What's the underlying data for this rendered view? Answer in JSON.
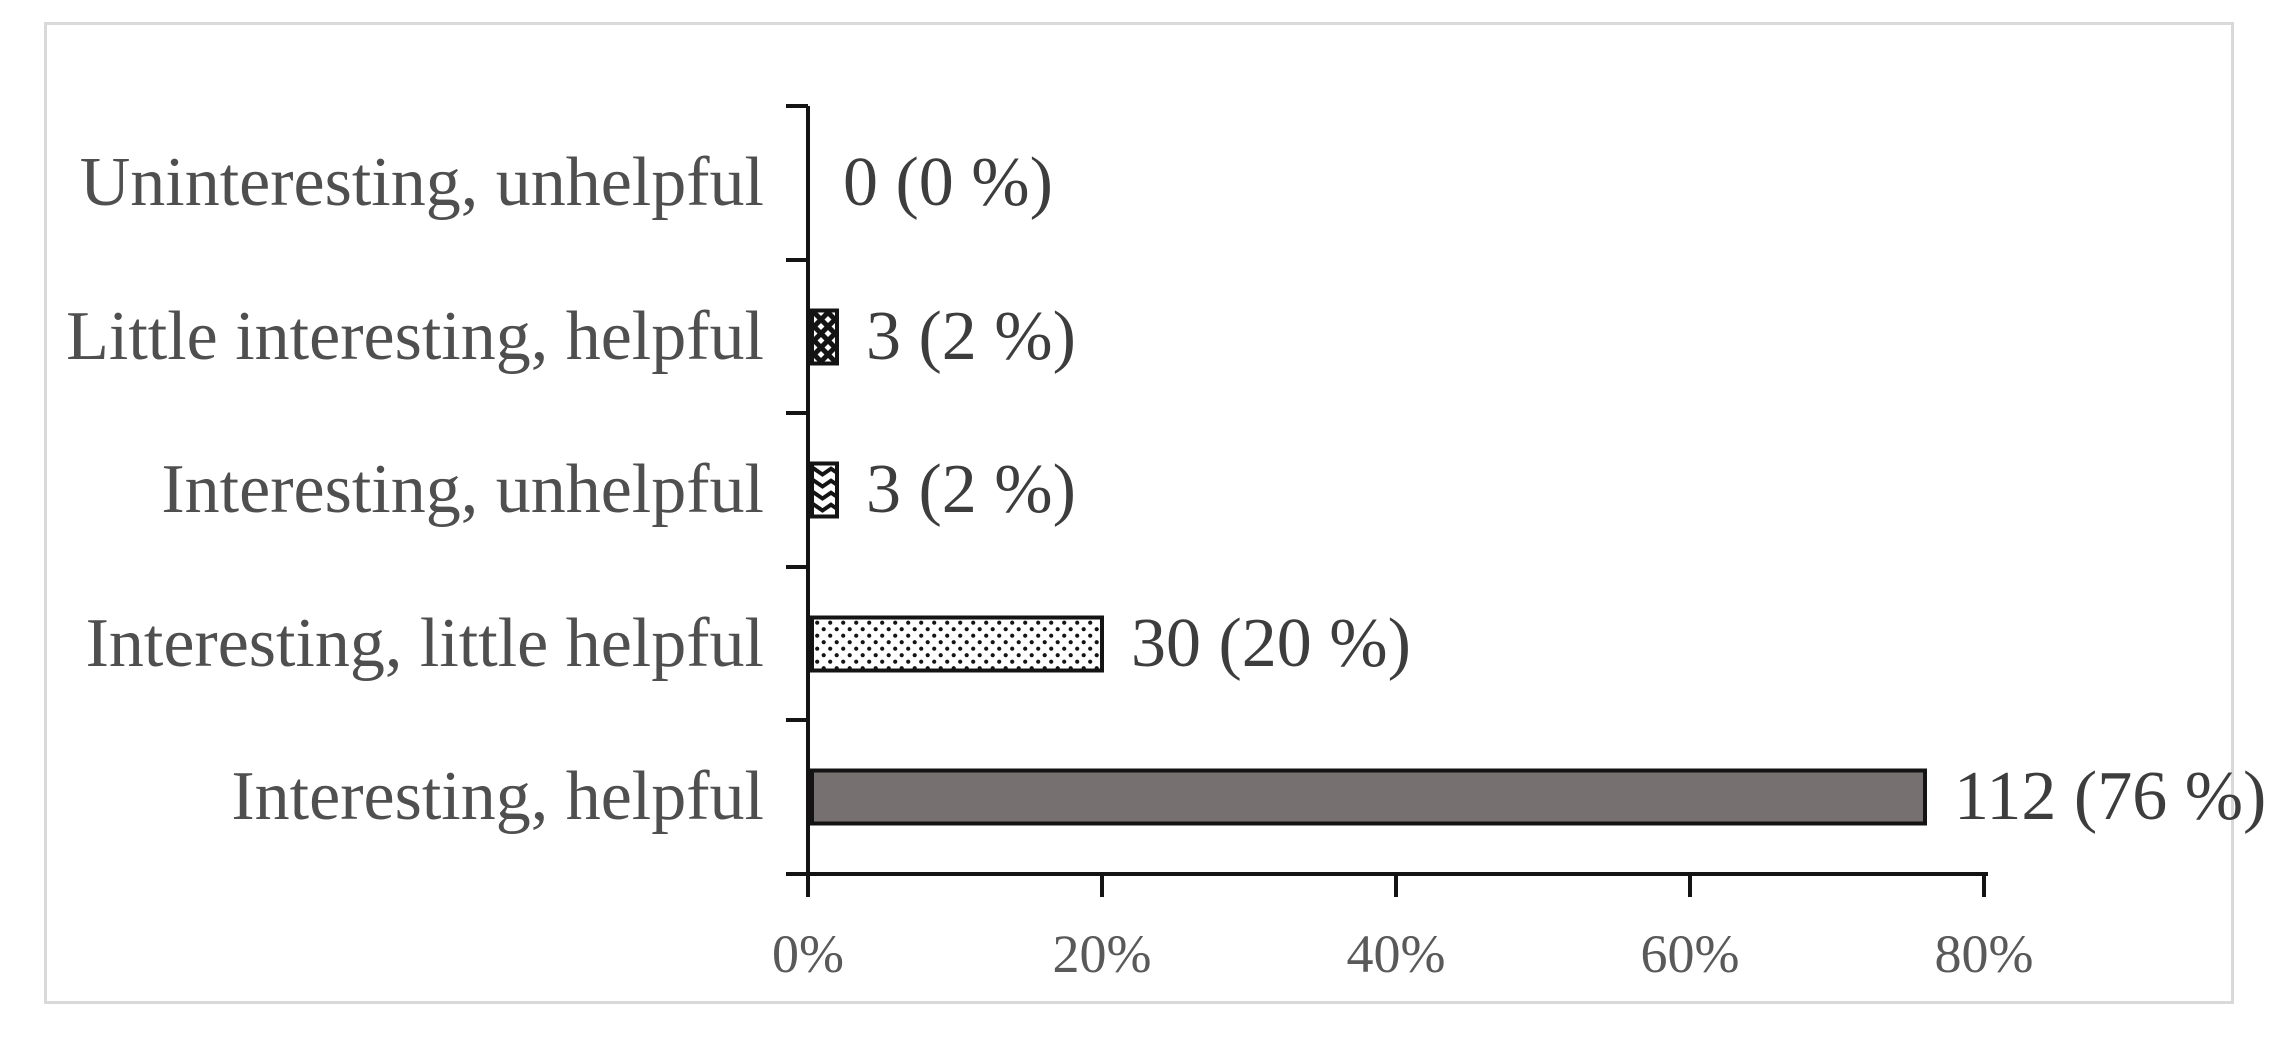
{
  "chart_data": {
    "type": "bar",
    "orientation": "horizontal",
    "title": "",
    "xlabel": "",
    "ylabel": "",
    "categories": [
      "Uninteresting, unhelpful",
      "Little interesting, helpful",
      "Interesting, unhelpful",
      "Interesting, little helpful",
      "Interesting, helpful"
    ],
    "values_count": [
      0,
      3,
      3,
      30,
      112
    ],
    "values_pct": [
      0,
      2,
      2,
      20,
      76
    ],
    "data_labels": [
      "0 (0 %)",
      "3 (2 %)",
      "3 (2 %)",
      "30 (20 %)",
      "112 (76 %)"
    ],
    "bar_styles": [
      "none",
      "diamond-check-pattern",
      "zigzag-pattern",
      "dots-pattern",
      "solid-gray"
    ],
    "x_ticks": [
      "0%",
      "20%",
      "40%",
      "60%",
      "80%"
    ],
    "x_tick_values": [
      0,
      20,
      40,
      60,
      80
    ],
    "xlim": [
      0,
      80
    ],
    "grid": false,
    "legend": false,
    "colors": {
      "solid_bar_fill": "#767170",
      "bar_border": "#141414",
      "axis_line": "#141414",
      "category_text": "#4f4f4f",
      "data_label_text": "#3d3d3d",
      "tick_label_text": "#595959",
      "frame_border": "#d9d9d9",
      "background": "#ffffff"
    }
  }
}
